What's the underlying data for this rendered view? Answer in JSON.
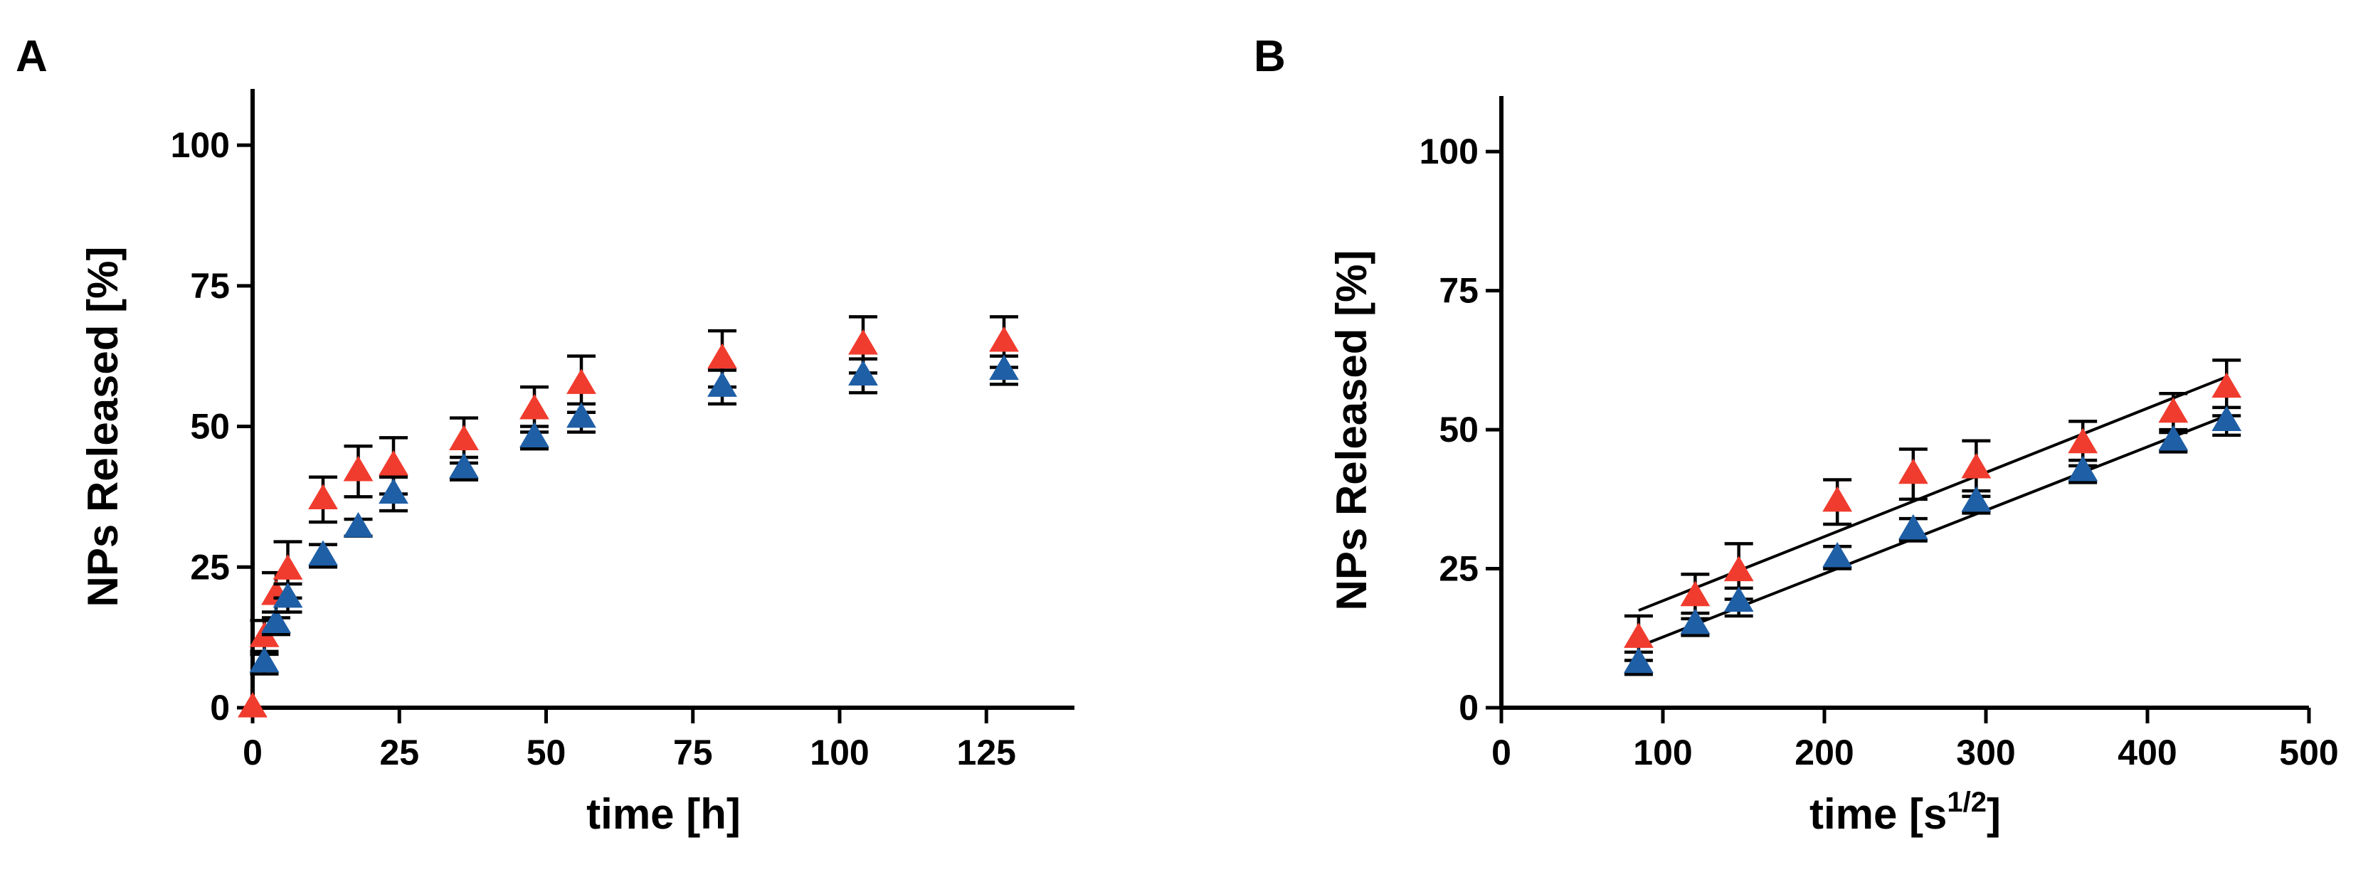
{
  "colors": {
    "red": "#f03c2e",
    "blue": "#1f5fa6",
    "axis": "#000000"
  },
  "chart_data": [
    {
      "panel": "A",
      "type": "scatter",
      "title": "",
      "xlabel": "time [h]",
      "ylabel": "NPs Released [%]",
      "xlim": [
        0,
        140
      ],
      "ylim": [
        0,
        110
      ],
      "xticks": [
        0,
        25,
        50,
        75,
        100,
        125
      ],
      "yticks": [
        0,
        25,
        50,
        75,
        100
      ],
      "grid": false,
      "legend": "none",
      "series": [
        {
          "color": "#f03c2e",
          "marker": "triangle",
          "x": [
            0,
            2,
            4,
            6,
            12,
            18,
            24,
            36,
            48,
            56,
            80,
            104,
            128
          ],
          "y": [
            0,
            12.5,
            20,
            24.5,
            37,
            42,
            43,
            47.5,
            53,
            57.5,
            62,
            64.5,
            65
          ],
          "err": [
            0,
            3,
            4,
            5,
            4,
            4.5,
            5,
            4,
            4,
            5,
            5,
            5,
            4.5
          ]
        },
        {
          "color": "#1f5fa6",
          "marker": "triangle",
          "x": [
            2,
            4,
            6,
            12,
            18,
            24,
            36,
            48,
            56,
            80,
            104,
            128
          ],
          "y": [
            8,
            15,
            19.5,
            27,
            32,
            38,
            42.5,
            48,
            51.5,
            57,
            59,
            60
          ],
          "err": [
            2,
            2,
            2.5,
            2,
            1.5,
            3,
            2,
            2,
            2.5,
            3,
            3,
            2.5
          ]
        }
      ]
    },
    {
      "panel": "B",
      "type": "scatter",
      "title": "",
      "xlabel": "time [s",
      "xlabel_sup": "1/2",
      "xlabel_end": "]",
      "ylabel": "NPs Released [%]",
      "xlim": [
        0,
        500
      ],
      "ylim": [
        0,
        110
      ],
      "xticks": [
        0,
        100,
        200,
        300,
        400,
        500
      ],
      "yticks": [
        0,
        25,
        50,
        75,
        100
      ],
      "grid": false,
      "legend": "none",
      "series": [
        {
          "color": "#f03c2e",
          "marker": "triangle",
          "x": [
            85,
            120,
            147,
            208,
            255,
            294,
            360,
            416,
            449
          ],
          "y": [
            12.5,
            20,
            24.5,
            37,
            42,
            43,
            47.5,
            53,
            57.5
          ],
          "err": [
            4,
            4,
            5,
            4,
            4.5,
            5,
            4,
            3.5,
            5
          ],
          "fit": [
            [
              85,
              17.5
            ],
            [
              449,
              59.5
            ]
          ]
        },
        {
          "color": "#1f5fa6",
          "marker": "triangle",
          "x": [
            85,
            120,
            147,
            208,
            255,
            294,
            360,
            416,
            449
          ],
          "y": [
            8,
            15,
            19,
            27,
            32,
            37,
            42.5,
            48,
            51.5
          ],
          "err": [
            2,
            2,
            2.5,
            2,
            2,
            2,
            2,
            2,
            2.5
          ],
          "fit": [
            [
              85,
              11
            ],
            [
              449,
              52.5
            ]
          ]
        }
      ]
    }
  ]
}
